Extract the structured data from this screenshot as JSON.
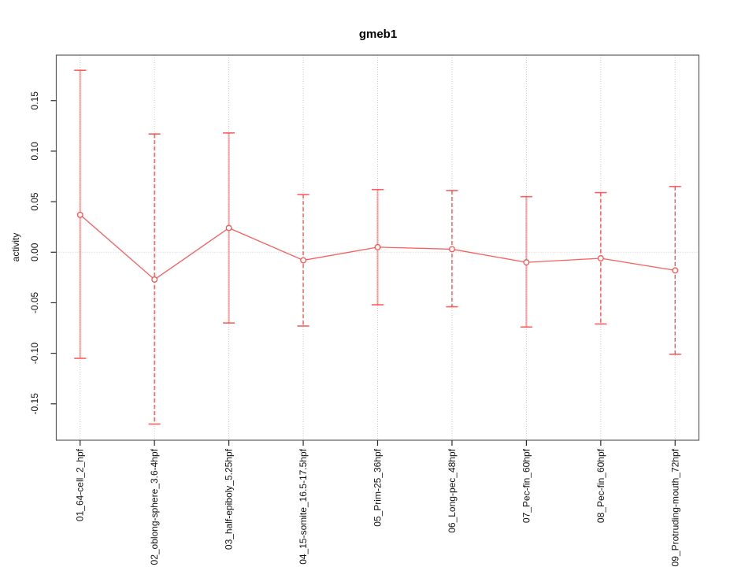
{
  "chart_data": {
    "type": "line",
    "title": "gmeb1",
    "xlabel": "",
    "ylabel": "activity",
    "legend": "none",
    "categories": [
      "01_64-cell_2_hpf",
      "02_oblong-sphere_3.6-4hpf",
      "03_half-epiboly_5.25hpf",
      "04_15-somite_16.5-17.5hpf",
      "05_Prim-25_36hpf",
      "06_Long-pec_48hpf",
      "07_Pec-fin_60hpf",
      "08_Pec-fin_60hpf",
      "09_Protruding-mouth_72hpf"
    ],
    "series": [
      {
        "name": "activity",
        "means": [
          0.037,
          -0.027,
          0.024,
          -0.008,
          0.005,
          0.003,
          -0.01,
          -0.006,
          -0.018
        ],
        "lower": [
          -0.105,
          -0.17,
          -0.07,
          -0.073,
          -0.052,
          -0.054,
          -0.074,
          -0.071,
          -0.101
        ],
        "upper": [
          0.18,
          0.117,
          0.118,
          0.057,
          0.062,
          0.061,
          0.055,
          0.059,
          0.065
        ]
      }
    ],
    "yticks": [
      0.15,
      0.1,
      0.05,
      0.0,
      -0.05,
      -0.1,
      -0.15
    ],
    "ytick_labels": [
      "0.15",
      "0.10",
      "0.05",
      "0.00",
      "-0.05",
      "-0.10",
      "-0.15"
    ],
    "ylim": [
      -0.186,
      0.195
    ],
    "xlim": [
      0.68,
      9.32
    ],
    "point_style": "open-circle",
    "error_bar_line_styles": [
      "fine-dotted",
      "dashed",
      "fine-dotted",
      "dashed",
      "fine-dotted",
      "dashed",
      "fine-dotted",
      "dashed",
      "dashed"
    ],
    "grid": {
      "vertical_per_category": true,
      "horizontal_at_zero": true,
      "style": "dotted",
      "color": "#c9c9c9"
    },
    "colors": {
      "series": "#ff4040",
      "series_light": "#f5a8a8",
      "marker_fill": "#ffffff",
      "box": "#5c5c5c",
      "tick": "#2a2a2a",
      "grid": "#c9c9c9",
      "text": "#111111"
    }
  }
}
